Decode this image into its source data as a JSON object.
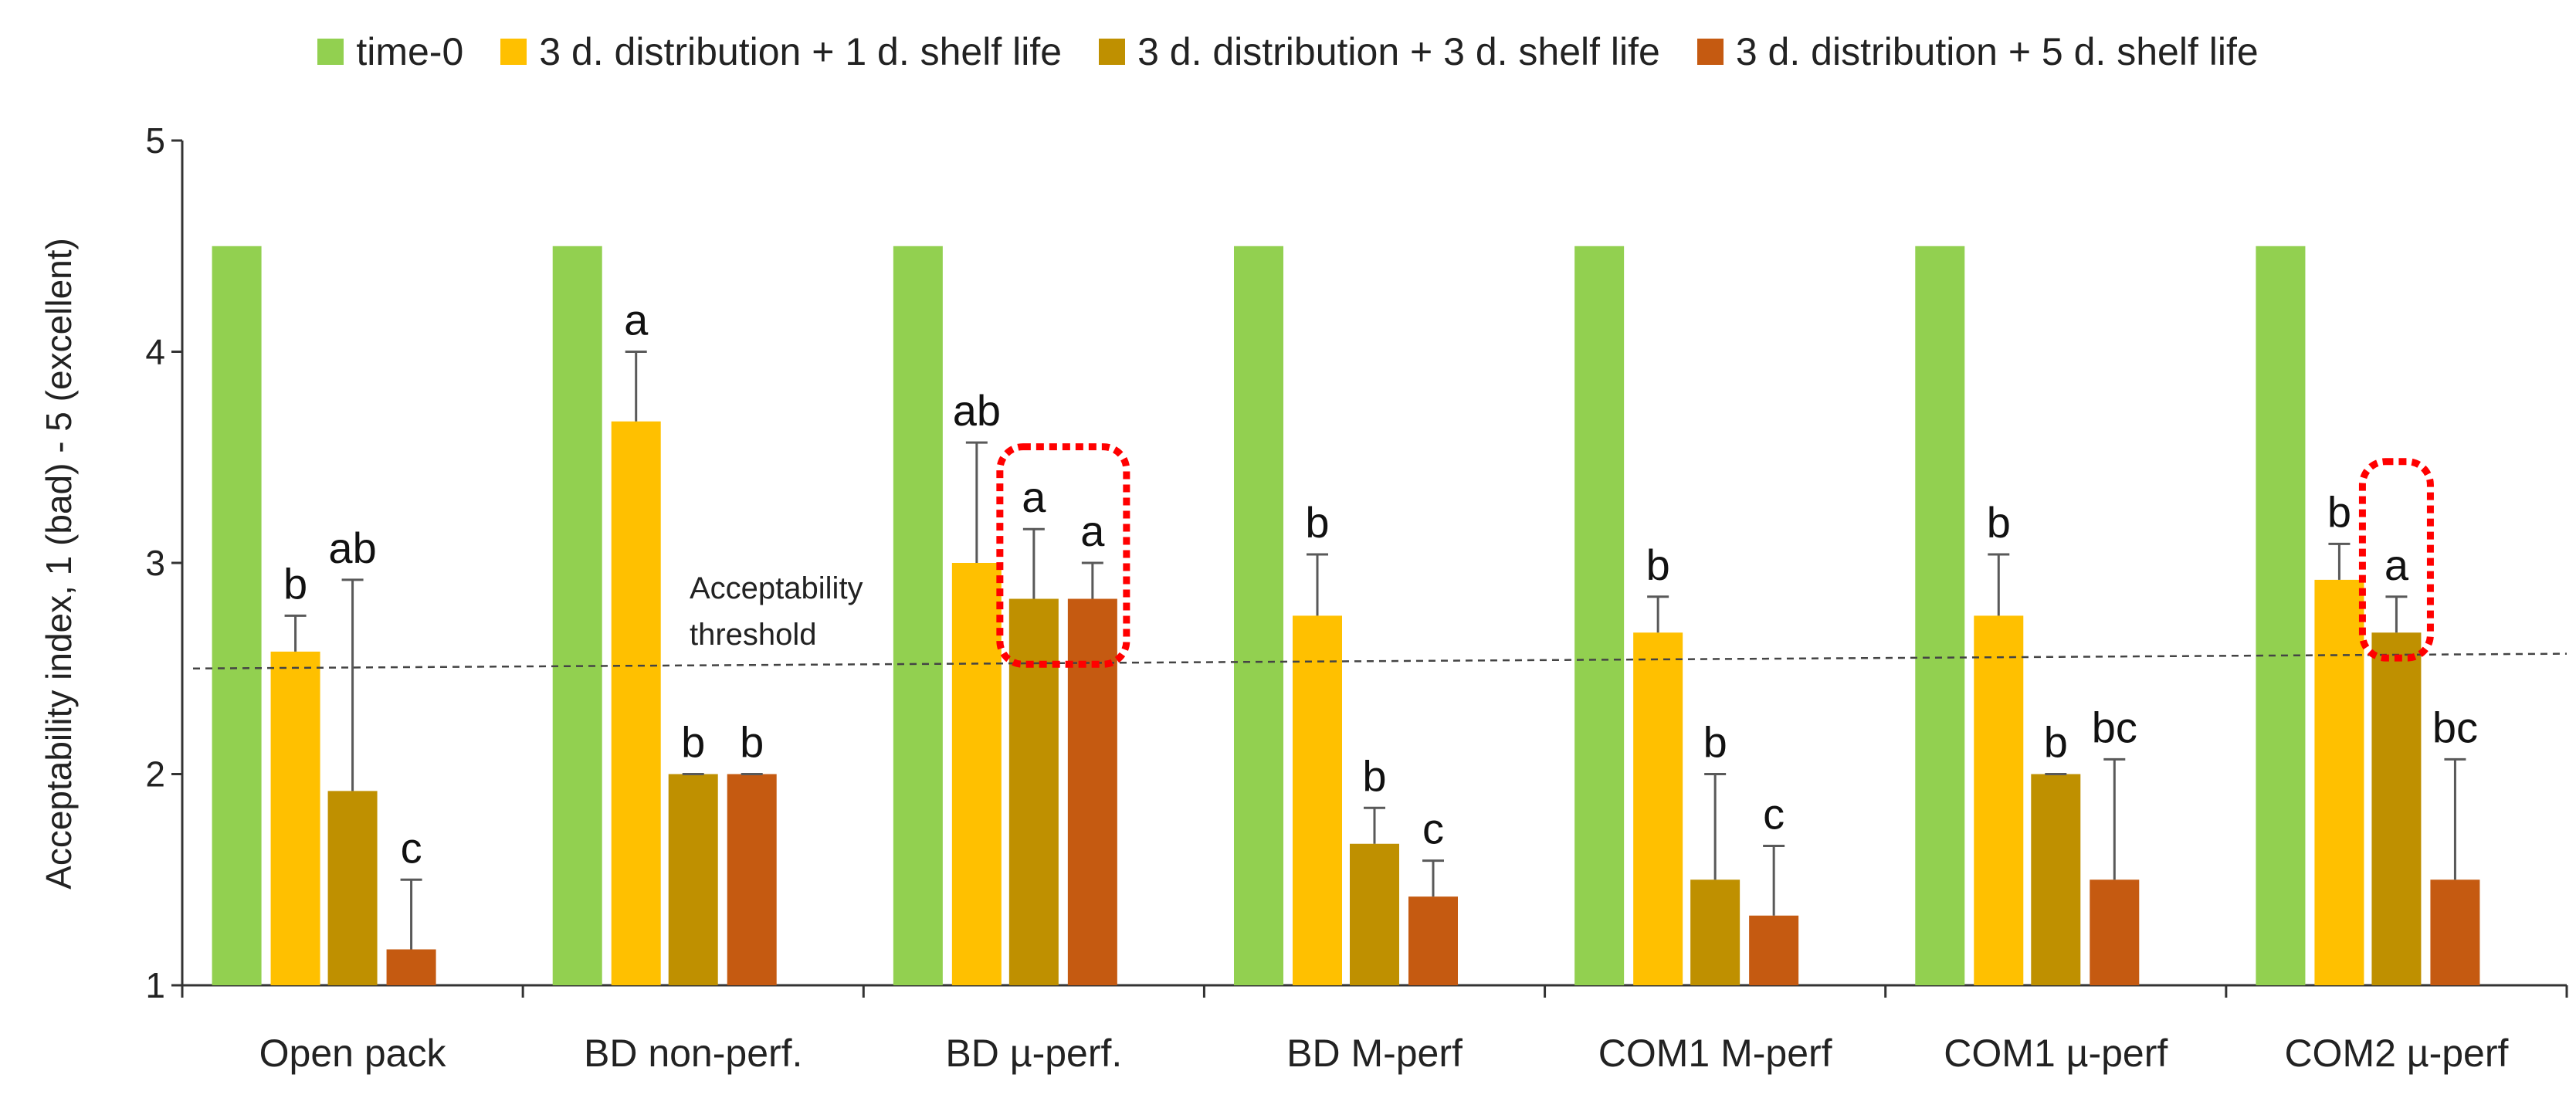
{
  "chart_data": {
    "type": "bar",
    "title": "",
    "xlabel": "",
    "ylabel": "Acceptability index, 1 (bad) - 5 (excellent)",
    "ylim": [
      1,
      5
    ],
    "yticks": [
      1,
      2,
      3,
      4,
      5
    ],
    "legend_position": "top",
    "grid": false,
    "categories": [
      "Open pack",
      "BD non-perf.",
      "BD µ-perf.",
      "BD M-perf",
      "COM1 M-perf",
      "COM1 µ-perf",
      "COM2 µ-perf"
    ],
    "series": [
      {
        "name": "time-0",
        "color": "#92d050",
        "values": [
          4.5,
          4.5,
          4.5,
          4.5,
          4.5,
          4.5,
          4.5
        ],
        "errors": [
          0,
          0,
          0,
          0,
          0,
          0,
          0
        ],
        "labels": [
          "",
          "",
          "",
          "",
          "",
          "",
          ""
        ]
      },
      {
        "name": "3 d. distribution + 1 d. shelf life",
        "color": "#ffc000",
        "values": [
          2.58,
          3.67,
          3.0,
          2.75,
          2.67,
          2.75,
          2.92
        ],
        "errors": [
          0.17,
          0.33,
          0.57,
          0.29,
          0.17,
          0.29,
          0.17
        ],
        "labels": [
          "b",
          "a",
          "ab",
          "b",
          "b",
          "b",
          "b"
        ]
      },
      {
        "name": "3 d. distribution + 3 d. shelf life",
        "color": "#bf9000",
        "values": [
          1.92,
          2.0,
          2.83,
          1.67,
          1.5,
          2.0,
          2.67
        ],
        "errors": [
          1.0,
          0.0,
          0.33,
          0.17,
          0.5,
          0.0,
          0.17
        ],
        "labels": [
          "ab",
          "b",
          "a",
          "b",
          "b",
          "b",
          "a"
        ]
      },
      {
        "name": "3 d. distribution + 5 d. shelf life",
        "color": "#c55a11",
        "values": [
          1.17,
          2.0,
          2.83,
          1.42,
          1.33,
          1.5,
          1.5
        ],
        "errors": [
          0.33,
          0.0,
          0.17,
          0.17,
          0.33,
          0.57,
          0.57
        ],
        "labels": [
          "c",
          "b",
          "a",
          "c",
          "c",
          "bc",
          "bc"
        ]
      }
    ],
    "threshold": {
      "label_line1": "Acceptability",
      "label_line2": "threshold",
      "y_start": 2.5,
      "y_end": 2.57
    },
    "highlights": [
      {
        "category_index": 2,
        "series_from": 2,
        "series_to": 3,
        "y_low": 2.52,
        "y_high": 3.55
      },
      {
        "category_index": 6,
        "series_from": 2,
        "series_to": 2,
        "y_low": 2.55,
        "y_high": 3.48
      }
    ]
  }
}
